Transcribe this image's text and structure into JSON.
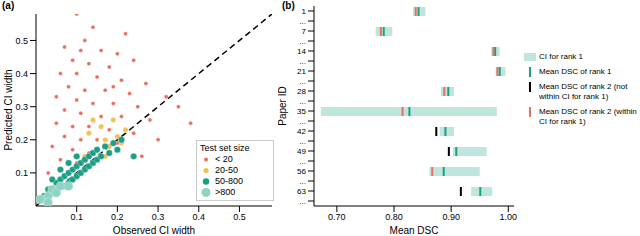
{
  "chart_data": [
    {
      "type": "scatter",
      "title": "(a)",
      "x_label": "Observed CI width",
      "y_label": "Predicted CI width",
      "xlim": [
        0,
        0.58
      ],
      "ylim": [
        0,
        0.58
      ],
      "xticks": [
        0.1,
        0.2,
        0.3,
        0.4,
        0.5
      ],
      "yticks": [
        0.1,
        0.2,
        0.3,
        0.4,
        0.5
      ],
      "grid": false,
      "legend": "lower right",
      "legend_title": "Test set size",
      "series": [
        {
          "name": "< 20",
          "color": "#e8705c",
          "x": [
            0.1,
            0.14,
            0.22,
            0.07,
            0.11,
            0.16,
            0.2,
            0.09,
            0.13,
            0.18,
            0.24,
            0.06,
            0.1,
            0.15,
            0.21,
            0.27,
            0.08,
            0.12,
            0.17,
            0.23,
            0.05,
            0.1,
            0.14,
            0.19,
            0.25,
            0.32,
            0.07,
            0.11,
            0.16,
            0.21,
            0.28,
            0.05,
            0.09,
            0.13,
            0.18,
            0.24,
            0.35,
            0.07,
            0.11,
            0.15,
            0.2,
            0.3,
            0.04,
            0.09,
            0.13,
            0.26,
            0.06,
            0.1,
            0.38,
            0.03,
            0.12,
            0.19
          ],
          "y": [
            0.58,
            0.54,
            0.52,
            0.48,
            0.47,
            0.47,
            0.46,
            0.44,
            0.43,
            0.42,
            0.44,
            0.4,
            0.4,
            0.39,
            0.38,
            0.37,
            0.36,
            0.35,
            0.35,
            0.34,
            0.33,
            0.32,
            0.31,
            0.31,
            0.3,
            0.33,
            0.29,
            0.28,
            0.27,
            0.27,
            0.26,
            0.25,
            0.24,
            0.24,
            0.23,
            0.22,
            0.3,
            0.21,
            0.2,
            0.2,
            0.19,
            0.2,
            0.18,
            0.17,
            0.16,
            0.15,
            0.14,
            0.13,
            0.25,
            0.1,
            0.5,
            0.36
          ]
        },
        {
          "name": "20-50",
          "color": "#f2c14e",
          "x": [
            0.13,
            0.16,
            0.17,
            0.19,
            0.2,
            0.15,
            0.18,
            0.22,
            0.14,
            0.21,
            0.12,
            0.17
          ],
          "y": [
            0.22,
            0.24,
            0.2,
            0.26,
            0.21,
            0.17,
            0.18,
            0.23,
            0.26,
            0.19,
            0.15,
            0.15
          ]
        },
        {
          "name": "50-800",
          "color": "#1b9e86",
          "x": [
            0.02,
            0.03,
            0.04,
            0.05,
            0.05,
            0.06,
            0.07,
            0.07,
            0.08,
            0.08,
            0.09,
            0.09,
            0.1,
            0.1,
            0.11,
            0.11,
            0.12,
            0.12,
            0.13,
            0.13,
            0.14,
            0.14,
            0.15,
            0.15,
            0.16,
            0.17,
            0.18,
            0.19,
            0.2,
            0.21,
            0.06,
            0.08,
            0.1,
            0.04,
            0.24
          ],
          "y": [
            0.03,
            0.05,
            0.04,
            0.07,
            0.05,
            0.08,
            0.06,
            0.09,
            0.1,
            0.07,
            0.11,
            0.08,
            0.12,
            0.09,
            0.13,
            0.1,
            0.14,
            0.11,
            0.15,
            0.12,
            0.16,
            0.13,
            0.17,
            0.14,
            0.15,
            0.18,
            0.16,
            0.19,
            0.17,
            0.2,
            0.11,
            0.13,
            0.15,
            0.08,
            0.15
          ]
        },
        {
          "name": ">800",
          "color": "#8fd3c4",
          "x": [
            0.02,
            0.03,
            0.04,
            0.05,
            0.06,
            0.08,
            0.01,
            0.03
          ],
          "y": [
            0.02,
            0.03,
            0.05,
            0.04,
            0.06,
            0.06,
            0.02,
            0.01
          ]
        }
      ]
    },
    {
      "type": "range_bar",
      "title": "(b)",
      "orientation": "horizontal",
      "x_label": "Mean DSC",
      "y_label": "Paper ID",
      "categories": [
        "1",
        "...",
        "7",
        "...",
        "14",
        "...",
        "21",
        "...",
        "28",
        "...",
        "35",
        "...",
        "42",
        "...",
        "49",
        "...",
        "56",
        "...",
        "63",
        "..."
      ],
      "xlim": [
        0.66,
        1.01
      ],
      "xticks": [
        {
          "value": 0.7,
          "label": "0.70"
        },
        {
          "value": 0.8,
          "label": "0.80"
        },
        {
          "value": 0.9,
          "label": "0.90"
        },
        {
          "value": 1.0,
          "label": "1.00"
        }
      ],
      "series": [
        {
          "name": "CI for rank 1",
          "color": "#bfe6dc",
          "lower": [
            0.833,
            null,
            0.768,
            null,
            0.97,
            null,
            0.978,
            null,
            0.882,
            null,
            0.672,
            null,
            0.88,
            null,
            0.903,
            null,
            0.862,
            null,
            0.935,
            null
          ],
          "upper": [
            0.855,
            null,
            0.797,
            null,
            0.985,
            null,
            0.995,
            null,
            0.905,
            null,
            0.98,
            null,
            0.905,
            null,
            0.962,
            null,
            0.95,
            null,
            0.972,
            null
          ]
        },
        {
          "name": "Mean DSC of rank 1",
          "color": "#1b9e86",
          "values": [
            0.843,
            null,
            0.782,
            null,
            0.977,
            null,
            0.985,
            null,
            0.895,
            null,
            0.827,
            null,
            0.89,
            null,
            0.909,
            null,
            0.887,
            null,
            0.951,
            null
          ]
        },
        {
          "name": "Mean DSC of rank 2 (not within CI for rank 1)",
          "color": "#000000",
          "values": [
            null,
            null,
            null,
            null,
            null,
            null,
            null,
            null,
            null,
            null,
            null,
            null,
            0.874,
            null,
            0.896,
            null,
            null,
            null,
            0.917,
            null
          ]
        },
        {
          "name": "Mean DSC of rank 2 (within CI for rank 1)",
          "color": "#e8705c",
          "values": [
            0.838,
            null,
            0.777,
            null,
            0.974,
            null,
            0.981,
            null,
            0.888,
            null,
            0.815,
            null,
            null,
            null,
            null,
            null,
            0.867,
            null,
            null,
            null
          ]
        }
      ]
    }
  ]
}
